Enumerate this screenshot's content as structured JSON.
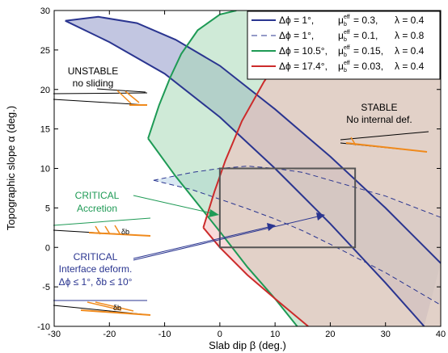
{
  "chart_data": {
    "type": "area",
    "xlabel": "Slab dip β (deg.)",
    "ylabel": "Topographic slope α (deg.)",
    "xlim": [
      -30,
      40
    ],
    "ylim": [
      -10,
      30
    ],
    "xticks": [
      "-30",
      "-20",
      "-10",
      "0",
      "10",
      "20",
      "30",
      "40"
    ],
    "yticks": [
      "-10",
      "-5",
      "0",
      "5",
      "10",
      "15",
      "20",
      "25",
      "30"
    ],
    "grid": false,
    "legend_position": "top-right",
    "legend": [
      {
        "text": "Δϕ = 1°,       μ_b^eff = 0.3,   λ = 0.4",
        "dphi": "Δϕ = 1°,",
        "mu": "0.3,",
        "lam": "λ = 0.4",
        "color": "#2a3590",
        "dash": false
      },
      {
        "text": "Δϕ = 1°,       μ_b^eff = 0.1,   λ = 0.8",
        "dphi": "Δϕ = 1°,",
        "mu": "0.1,",
        "lam": "λ = 0.8",
        "color": "#2a3590",
        "dash": true
      },
      {
        "text": "Δϕ = 10.5°, μ_b^eff = 0.15, λ = 0.4",
        "dphi": "Δϕ = 10.5°,",
        "mu": "0.15,",
        "lam": "λ = 0.4",
        "color": "#1e9a55",
        "dash": false
      },
      {
        "text": "Δϕ = 17.4°, μ_b^eff = 0.03, λ = 0.4",
        "dphi": "Δϕ = 17.4°,",
        "mu": "0.03,",
        "lam": "λ = 0.4",
        "color": "#cc2b2b",
        "dash": false
      }
    ],
    "series": [
      {
        "name": "Δϕ = 1°, μb_eff = 0.3, λ = 0.4",
        "color": "#2a3590",
        "fill": "#8f97c9",
        "upper": [
          [
            -28,
            28.7
          ],
          [
            -22,
            29.2
          ],
          [
            -15,
            28.4
          ],
          [
            -8,
            26.3
          ],
          [
            0,
            23
          ],
          [
            10,
            17.5
          ],
          [
            20,
            11.5
          ],
          [
            30,
            5
          ],
          [
            40,
            -2
          ]
        ],
        "lower": [
          [
            -28,
            28.7
          ],
          [
            -20,
            26
          ],
          [
            -10,
            22
          ],
          [
            0,
            16.5
          ],
          [
            10,
            10
          ],
          [
            20,
            3
          ],
          [
            30,
            -4.5
          ],
          [
            37,
            -10
          ]
        ]
      },
      {
        "name": "Δϕ = 1°, μb_eff = 0.1, λ = 0.8",
        "color": "#2a3590",
        "dashed": true,
        "fill": "#bcd6ea",
        "upper": [
          [
            -12,
            8.5
          ],
          [
            -5,
            9.5
          ],
          [
            0,
            10
          ],
          [
            5,
            10.3
          ],
          [
            10,
            10
          ],
          [
            15,
            9.5
          ],
          [
            20,
            8.5
          ],
          [
            30,
            6.5
          ],
          [
            40,
            3.8
          ]
        ],
        "lower": [
          [
            -12,
            8.5
          ],
          [
            -5,
            7.3
          ],
          [
            0,
            6.1
          ],
          [
            5,
            4.9
          ],
          [
            10,
            3.6
          ],
          [
            15,
            2.1
          ],
          [
            20,
            0.4
          ],
          [
            30,
            -3.2
          ],
          [
            40,
            -7.3
          ]
        ]
      },
      {
        "name": "Δϕ = 10.5°, μb_eff = 0.15, λ = 0.4",
        "color": "#1e9a55",
        "fill": "#a7d8b6",
        "upper": [
          [
            -13,
            13.8
          ],
          [
            -11,
            18
          ],
          [
            -9,
            21.5
          ],
          [
            -7,
            24.5
          ],
          [
            -4,
            27.5
          ],
          [
            0,
            29.5
          ],
          [
            3,
            30
          ]
        ],
        "right_edge": [
          [
            40,
            30
          ],
          [
            40,
            -10
          ]
        ],
        "lower": [
          [
            -13,
            13.8
          ],
          [
            -8,
            9
          ],
          [
            0,
            2
          ],
          [
            5,
            -2.5
          ],
          [
            10,
            -6.5
          ],
          [
            14,
            -10
          ]
        ]
      },
      {
        "name": "Δϕ = 17.4°, μb_eff = 0.03, λ = 0.4",
        "color": "#cc2b2b",
        "fill": "#f3bcbc",
        "upper": [
          [
            -3,
            2.5
          ],
          [
            -1,
            7
          ],
          [
            1,
            11
          ],
          [
            4,
            16
          ],
          [
            8,
            21
          ],
          [
            12,
            25
          ],
          [
            16,
            28.5
          ],
          [
            18,
            30
          ]
        ],
        "right_edge": [
          [
            40,
            30
          ],
          [
            40,
            -10
          ]
        ],
        "lower": [
          [
            -3,
            2.5
          ],
          [
            0,
            0
          ],
          [
            5,
            -3.5
          ],
          [
            10,
            -6.5
          ],
          [
            16,
            -10
          ]
        ]
      }
    ],
    "reference_box": {
      "x": [
        0,
        24.5
      ],
      "y": [
        0,
        10
      ],
      "color": "#555555"
    },
    "annotations": [
      {
        "key": "unstable",
        "lines": [
          "UNSTABLE",
          "no sliding"
        ],
        "color": "#000000"
      },
      {
        "key": "stable",
        "lines": [
          "STABLE",
          "No internal def."
        ],
        "color": "#000000"
      },
      {
        "key": "critical_accretion",
        "lines": [
          "CRITICAL",
          "Accretion"
        ],
        "color": "#1e9a55"
      },
      {
        "key": "critical_interface",
        "lines": [
          "CRITICAL",
          "Interface deform.",
          "Δϕ ≤ 1°, δb ≤ 10°"
        ],
        "color": "#2a3590"
      }
    ],
    "sketch_labels": [
      "δb",
      "δb"
    ]
  }
}
